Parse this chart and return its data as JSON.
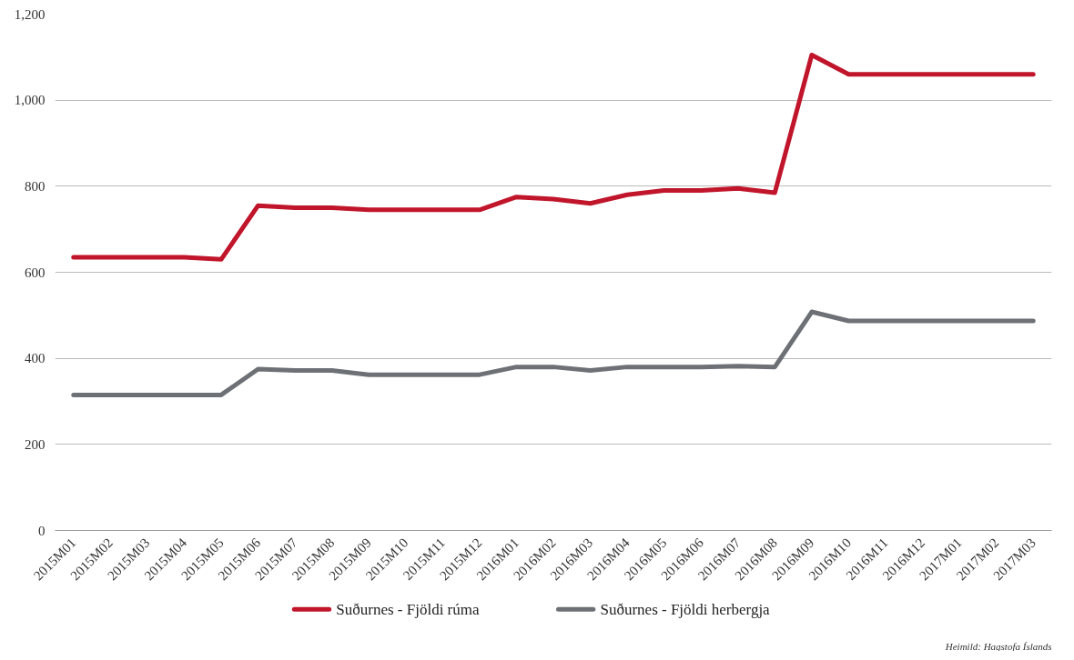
{
  "chart_data": {
    "type": "line",
    "categories": [
      "2015M01",
      "2015M02",
      "2015M03",
      "2015M04",
      "2015M05",
      "2015M06",
      "2015M07",
      "2015M08",
      "2015M09",
      "2015M10",
      "2015M11",
      "2015M12",
      "2016M01",
      "2016M02",
      "2016M03",
      "2016M04",
      "2016M05",
      "2016M06",
      "2016M07",
      "2016M08",
      "2016M09",
      "2016M10",
      "2016M11",
      "2016M12",
      "2017M01",
      "2017M02",
      "2017M03"
    ],
    "series": [
      {
        "name": "Suðurnes - Fjöldi rúma",
        "color": "#c0152a",
        "values": [
          635,
          635,
          635,
          635,
          630,
          755,
          750,
          750,
          745,
          745,
          745,
          745,
          775,
          770,
          760,
          780,
          790,
          790,
          795,
          785,
          1105,
          1060,
          1060,
          1060,
          1060,
          1060,
          1060
        ]
      },
      {
        "name": "Suðurnes - Fjöldi herbergja",
        "color": "#6d7175",
        "values": [
          315,
          315,
          315,
          315,
          315,
          375,
          372,
          372,
          362,
          362,
          362,
          362,
          380,
          380,
          372,
          380,
          380,
          380,
          382,
          380,
          508,
          487,
          487,
          487,
          487,
          487,
          487
        ]
      }
    ],
    "ylim": [
      0,
      1200
    ],
    "yticks": [
      0,
      200,
      400,
      600,
      800,
      {
        "value": 1000,
        "label": "1,000"
      },
      {
        "value": 1200,
        "label": "1,200"
      }
    ],
    "grid": "y",
    "legend": "bottom",
    "marker": "none",
    "line_style": "solid",
    "annotations": [
      "Heimild: Hagstofa Íslands"
    ]
  }
}
